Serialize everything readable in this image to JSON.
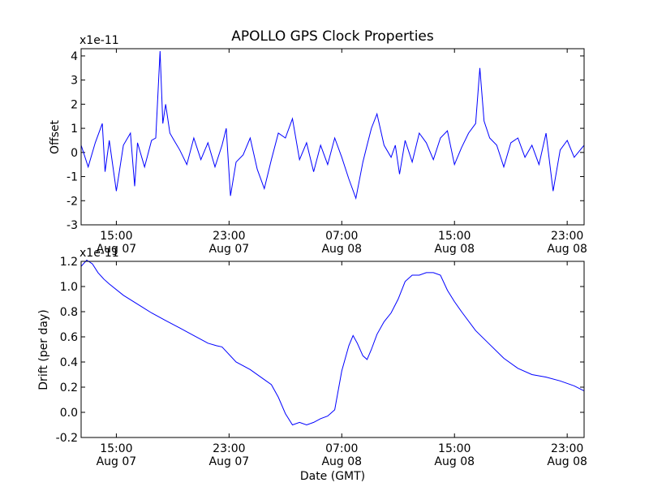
{
  "chart_data": [
    {
      "type": "line",
      "title": "APOLLO GPS Clock Properties",
      "xlabel": "",
      "ylabel": "Offset",
      "offset_text": "x1e-11",
      "series_color": "#0000ff",
      "x_unit": "hours since Aug 07 12:30 GMT",
      "xlim": [
        0,
        35.7
      ],
      "ylim": [
        -3,
        4.3
      ],
      "yticks": [
        {
          "value": -3,
          "label": "-3"
        },
        {
          "value": -2,
          "label": "-2"
        },
        {
          "value": -1,
          "label": "-1"
        },
        {
          "value": 0,
          "label": "0"
        },
        {
          "value": 1,
          "label": "1"
        },
        {
          "value": 2,
          "label": "2"
        },
        {
          "value": 3,
          "label": "3"
        },
        {
          "value": 4,
          "label": "4"
        }
      ],
      "xticks": [
        {
          "value": 2.5,
          "time": "15:00",
          "date": "Aug 07"
        },
        {
          "value": 10.5,
          "time": "23:00",
          "date": "Aug 07"
        },
        {
          "value": 18.5,
          "time": "07:00",
          "date": "Aug 08"
        },
        {
          "value": 26.5,
          "time": "15:00",
          "date": "Aug 08"
        },
        {
          "value": 34.5,
          "time": "23:00",
          "date": "Aug 08"
        }
      ],
      "series": [
        {
          "name": "Offset",
          "x": [
            0,
            0.5,
            1,
            1.5,
            1.7,
            2,
            2.5,
            3,
            3.5,
            3.8,
            4,
            4.5,
            5,
            5.3,
            5.6,
            5.8,
            6,
            6.3,
            6.6,
            7,
            7.5,
            8,
            8.5,
            9,
            9.5,
            10,
            10.3,
            10.6,
            11,
            11.5,
            12,
            12.5,
            13,
            13.5,
            14,
            14.5,
            15,
            15.5,
            16,
            16.5,
            17,
            17.5,
            18,
            18.5,
            19,
            19.5,
            20,
            20.3,
            20.6,
            21,
            21.5,
            22,
            22.3,
            22.6,
            23,
            23.5,
            24,
            24.5,
            25,
            25.5,
            26,
            26.5,
            27,
            27.5,
            28,
            28.3,
            28.6,
            29,
            29.5,
            30,
            30.5,
            31,
            31.5,
            32,
            32.5,
            33,
            33.5,
            34,
            34.5,
            35,
            35.7
          ],
          "y": [
            0.3,
            -0.6,
            0.4,
            1.2,
            -0.8,
            0.5,
            -1.6,
            0.3,
            0.8,
            -1.4,
            0.4,
            -0.6,
            0.5,
            0.6,
            4.2,
            1.2,
            2.0,
            0.8,
            0.5,
            0.1,
            -0.5,
            0.6,
            -0.3,
            0.4,
            -0.6,
            0.3,
            1.0,
            -1.8,
            -0.4,
            -0.1,
            0.6,
            -0.7,
            -1.5,
            -0.3,
            0.8,
            0.6,
            1.4,
            -0.3,
            0.4,
            -0.8,
            0.3,
            -0.5,
            0.6,
            -0.2,
            -1.1,
            -1.9,
            -0.4,
            0.3,
            1.0,
            1.6,
            0.3,
            -0.2,
            0.3,
            -0.9,
            0.5,
            -0.4,
            0.8,
            0.4,
            -0.3,
            0.6,
            0.9,
            -0.5,
            0.2,
            0.8,
            1.2,
            3.5,
            1.3,
            0.6,
            0.3,
            -0.6,
            0.4,
            0.6,
            -0.2,
            0.3,
            -0.5,
            0.8,
            -1.6,
            0.1,
            0.5,
            -0.2,
            0.3
          ]
        }
      ]
    },
    {
      "type": "line",
      "title": "",
      "xlabel": "Date (GMT)",
      "ylabel": "Drift (per day)",
      "offset_text": "x1e-11",
      "series_color": "#0000ff",
      "x_unit": "hours since Aug 07 12:30 GMT",
      "xlim": [
        0,
        35.7
      ],
      "ylim": [
        -0.2,
        1.2
      ],
      "yticks": [
        {
          "value": -0.2,
          "label": "-0.2"
        },
        {
          "value": 0.0,
          "label": "0.0"
        },
        {
          "value": 0.2,
          "label": "0.2"
        },
        {
          "value": 0.4,
          "label": "0.4"
        },
        {
          "value": 0.6,
          "label": "0.6"
        },
        {
          "value": 0.8,
          "label": "0.8"
        },
        {
          "value": 1.0,
          "label": "1.0"
        },
        {
          "value": 1.2,
          "label": "1.2"
        }
      ],
      "xticks": [
        {
          "value": 2.5,
          "time": "15:00",
          "date": "Aug 07"
        },
        {
          "value": 10.5,
          "time": "23:00",
          "date": "Aug 07"
        },
        {
          "value": 18.5,
          "time": "07:00",
          "date": "Aug 08"
        },
        {
          "value": 26.5,
          "time": "15:00",
          "date": "Aug 08"
        },
        {
          "value": 34.5,
          "time": "23:00",
          "date": "Aug 08"
        }
      ],
      "series": [
        {
          "name": "Drift",
          "x": [
            0,
            0.4,
            0.8,
            1.2,
            1.6,
            2,
            3,
            4,
            5,
            6,
            7,
            8,
            9,
            9.6,
            10,
            11,
            12,
            13,
            13.5,
            14,
            14.5,
            15,
            15.5,
            16,
            16.5,
            17,
            17.5,
            18,
            18.5,
            19,
            19.3,
            19.6,
            20,
            20.3,
            20.6,
            21,
            21.5,
            22,
            22.5,
            23,
            23.5,
            24,
            24.5,
            25,
            25.5,
            26,
            26.5,
            27,
            28,
            29,
            30,
            31,
            32,
            33,
            34,
            35,
            35.7
          ],
          "y": [
            1.16,
            1.21,
            1.18,
            1.11,
            1.06,
            1.02,
            0.93,
            0.86,
            0.79,
            0.73,
            0.67,
            0.61,
            0.55,
            0.53,
            0.52,
            0.4,
            0.34,
            0.26,
            0.22,
            0.12,
            -0.01,
            -0.1,
            -0.08,
            -0.1,
            -0.08,
            -0.05,
            -0.03,
            0.02,
            0.33,
            0.53,
            0.61,
            0.55,
            0.45,
            0.42,
            0.5,
            0.62,
            0.72,
            0.79,
            0.9,
            1.04,
            1.09,
            1.09,
            1.11,
            1.11,
            1.09,
            0.97,
            0.88,
            0.8,
            0.65,
            0.54,
            0.43,
            0.35,
            0.3,
            0.28,
            0.25,
            0.21,
            0.17
          ]
        }
      ]
    }
  ]
}
